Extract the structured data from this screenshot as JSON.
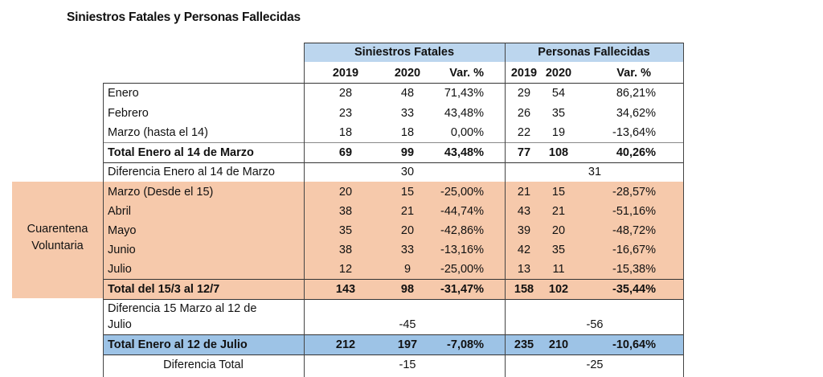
{
  "title": "Siniestros Fatales y Personas Fallecidas",
  "colors": {
    "header_blue": "#bcd6ee",
    "total_blue": "#9dc3e6",
    "quarantine_orange": "#f6c9ab"
  },
  "groups": {
    "siniestros": "Siniestros Fatales",
    "personas": "Personas Fallecidas"
  },
  "columns": [
    "2019",
    "2020",
    "Var. %",
    "2019",
    "2020",
    "Var. %"
  ],
  "side_label": {
    "line1": "Cuarentena",
    "line2": "Voluntaria"
  },
  "rows": [
    {
      "label": "Enero",
      "s2019": "28",
      "s2020": "48",
      "svar": "71,43%",
      "p2019": "29",
      "p2020": "54",
      "pvar": "86,21%"
    },
    {
      "label": "Febrero",
      "s2019": "23",
      "s2020": "33",
      "svar": "43,48%",
      "p2019": "26",
      "p2020": "35",
      "pvar": "34,62%"
    },
    {
      "label": "Marzo (hasta el 14)",
      "s2019": "18",
      "s2020": "18",
      "svar": "0,00%",
      "p2019": "22",
      "p2020": "19",
      "pvar": "-13,64%"
    },
    {
      "label": "Total Enero al 14 de Marzo",
      "s2019": "69",
      "s2020": "99",
      "svar": "43,48%",
      "p2019": "77",
      "p2020": "108",
      "pvar": "40,26%"
    },
    {
      "label": "Diferencia Enero al 14 de Marzo",
      "sdiff": "30",
      "pdiff": "31"
    },
    {
      "label": "Marzo (Desde el 15)",
      "s2019": "20",
      "s2020": "15",
      "svar": "-25,00%",
      "p2019": "21",
      "p2020": "15",
      "pvar": "-28,57%"
    },
    {
      "label": "Abril",
      "s2019": "38",
      "s2020": "21",
      "svar": "-44,74%",
      "p2019": "43",
      "p2020": "21",
      "pvar": "-51,16%"
    },
    {
      "label": "Mayo",
      "s2019": "35",
      "s2020": "20",
      "svar": "-42,86%",
      "p2019": "39",
      "p2020": "20",
      "pvar": "-48,72%"
    },
    {
      "label": "Junio",
      "s2019": "38",
      "s2020": "33",
      "svar": "-13,16%",
      "p2019": "42",
      "p2020": "35",
      "pvar": "-16,67%"
    },
    {
      "label": "Julio",
      "s2019": "12",
      "s2020": "9",
      "svar": "-25,00%",
      "p2019": "13",
      "p2020": "11",
      "pvar": "-15,38%"
    },
    {
      "label": "Total del 15/3 al 12/7",
      "s2019": "143",
      "s2020": "98",
      "svar": "-31,47%",
      "p2019": "158",
      "p2020": "102",
      "pvar": "-35,44%"
    },
    {
      "label_line1": "Diferencia 15 Marzo al 12 de",
      "label_line2": "Julio",
      "sdiff": "-45",
      "pdiff": "-56"
    },
    {
      "label": "Total Enero al 12 de Julio",
      "s2019": "212",
      "s2020": "197",
      "svar": "-7,08%",
      "p2019": "235",
      "p2020": "210",
      "pvar": "-10,64%"
    },
    {
      "label": "Diferencia Total",
      "sdiff": "-15",
      "pdiff": "-25"
    }
  ]
}
